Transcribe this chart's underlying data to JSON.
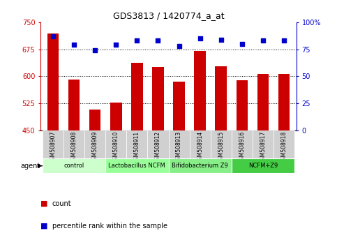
{
  "title": "GDS3813 / 1420774_a_at",
  "samples": [
    "GSM508907",
    "GSM508908",
    "GSM508909",
    "GSM508910",
    "GSM508911",
    "GSM508912",
    "GSM508913",
    "GSM508914",
    "GSM508915",
    "GSM508916",
    "GSM508917",
    "GSM508918"
  ],
  "counts": [
    718,
    592,
    508,
    527,
    637,
    625,
    585,
    670,
    628,
    590,
    607,
    607
  ],
  "percentiles": [
    87,
    79,
    74,
    79,
    83,
    83,
    78,
    85,
    84,
    80,
    83,
    83
  ],
  "ylim_left": [
    450,
    750
  ],
  "ylim_right": [
    0,
    100
  ],
  "yticks_left": [
    450,
    525,
    600,
    675,
    750
  ],
  "yticks_right": [
    0,
    25,
    50,
    75,
    100
  ],
  "bar_color": "#cc0000",
  "dot_color": "#0000cc",
  "groups": [
    {
      "label": "control",
      "indices": [
        0,
        1,
        2
      ],
      "color": "#ccffcc"
    },
    {
      "label": "Lactobacillus NCFM",
      "indices": [
        3,
        4,
        5
      ],
      "color": "#99ff99"
    },
    {
      "label": "Bifidobacterium Z9",
      "indices": [
        6,
        7,
        8
      ],
      "color": "#88ee88"
    },
    {
      "label": "NCFM+Z9",
      "indices": [
        9,
        10,
        11
      ],
      "color": "#44cc44"
    }
  ],
  "agent_label": "agent",
  "legend_count_label": "count",
  "legend_pct_label": "percentile rank within the sample",
  "background_color": "#ffffff",
  "sample_box_color": "#d0d0d0",
  "right_axis_label": "100%"
}
